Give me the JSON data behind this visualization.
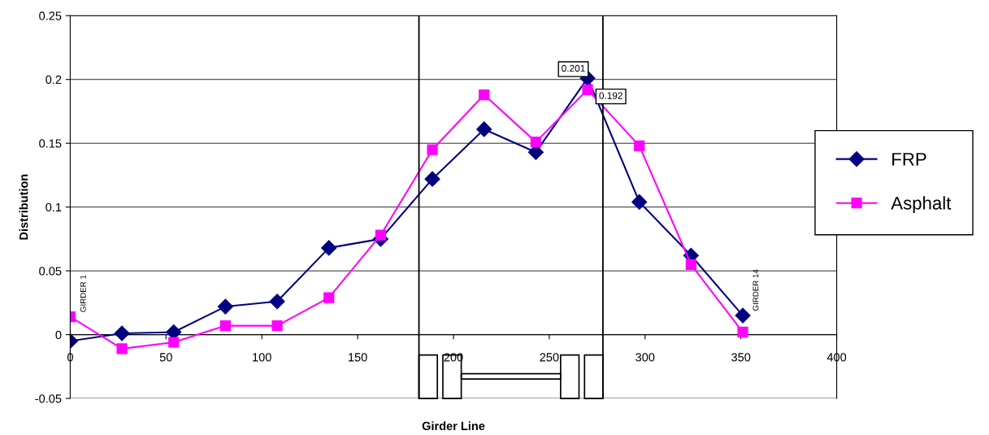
{
  "chart_data": {
    "type": "line",
    "xlabel": "Girder Line",
    "ylabel": "Distribution",
    "x": [
      0,
      27,
      54,
      81,
      108,
      135,
      162,
      189,
      216,
      243,
      270,
      297,
      324,
      351
    ],
    "series": [
      {
        "name": "FRP",
        "color": "#000080",
        "marker": "diamond",
        "values": [
          -0.005,
          0.001,
          0.002,
          0.022,
          0.026,
          0.068,
          0.075,
          0.122,
          0.161,
          0.143,
          0.201,
          0.104,
          0.062,
          0.015
        ]
      },
      {
        "name": "Asphalt",
        "color": "#ff00ff",
        "marker": "square",
        "values": [
          0.014,
          -0.011,
          -0.006,
          0.007,
          0.007,
          0.029,
          0.078,
          0.145,
          0.188,
          0.151,
          0.192,
          0.148,
          0.055,
          0.002
        ]
      }
    ],
    "xlim": [
      0,
      400
    ],
    "xticks": [
      0,
      50,
      100,
      150,
      200,
      250,
      300,
      350,
      400
    ],
    "ylim": [
      -0.05,
      0.25
    ],
    "yticks": [
      -0.05,
      0,
      0.05,
      0.1,
      0.15,
      0.2,
      0.25
    ],
    "grid": "y",
    "legend": "right",
    "ref_lines": [
      {
        "axis": "x",
        "value": 182,
        "color": "#000000"
      },
      {
        "axis": "x",
        "value": 278,
        "color": "#000000"
      }
    ],
    "annotations": [
      {
        "text": "0.201",
        "x": 270,
        "y": 0.201
      },
      {
        "text": "0.192",
        "x": 270,
        "y": 0.192
      },
      {
        "text": "GIRDER 1",
        "x": 0,
        "y": 0.014
      },
      {
        "text": "GIRDER 14",
        "x": 351,
        "y": 0.015
      }
    ]
  }
}
